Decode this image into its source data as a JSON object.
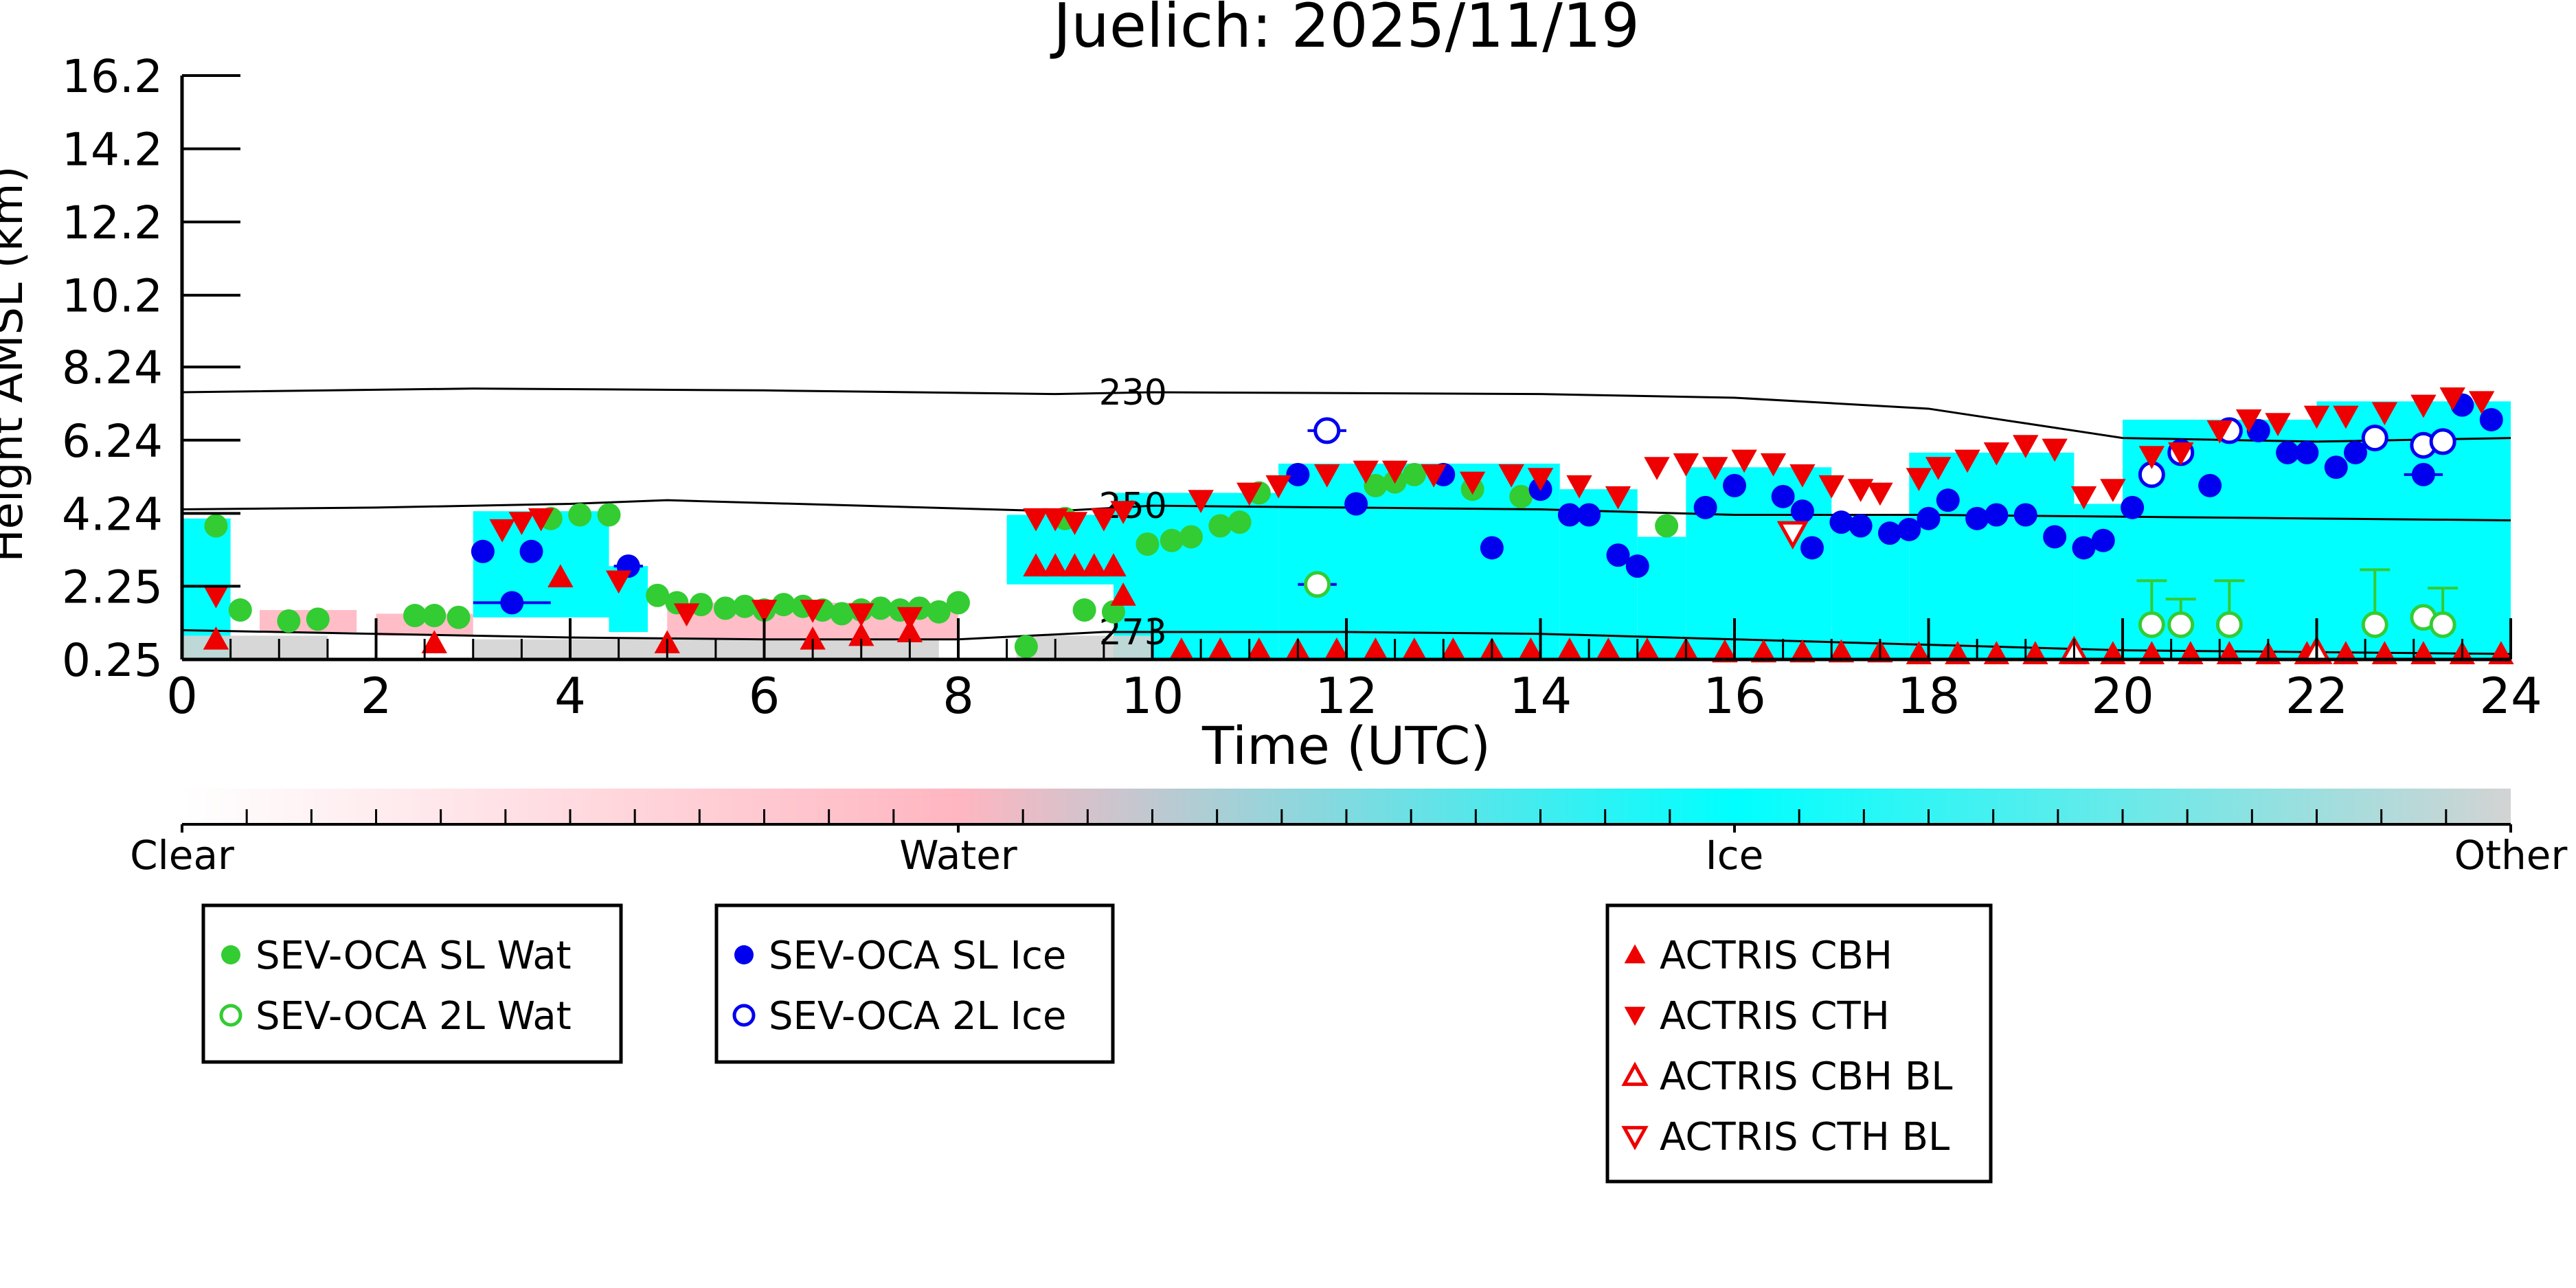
{
  "chart_data": {
    "type": "scatter",
    "title": "Juelich: 2025/11/19",
    "xlabel": "Time (UTC)",
    "ylabel": "Height AMSL (km)",
    "xlim": [
      0,
      24
    ],
    "ylim": [
      0.25,
      16.2
    ],
    "x_ticks": [
      0,
      2,
      4,
      6,
      8,
      10,
      12,
      14,
      16,
      18,
      20,
      22,
      24
    ],
    "y_ticks": [
      "0.25",
      "2.25",
      "4.24",
      "6.24",
      "8.24",
      "10.2",
      "12.2",
      "14.2",
      "16.2"
    ],
    "isotherms": [
      {
        "label": "230",
        "points": [
          [
            0,
            7.55
          ],
          [
            3,
            7.65
          ],
          [
            6,
            7.6
          ],
          [
            9,
            7.5
          ],
          [
            10,
            7.55
          ],
          [
            14,
            7.5
          ],
          [
            16,
            7.4
          ],
          [
            18,
            7.1
          ],
          [
            19,
            6.7
          ],
          [
            20,
            6.3
          ],
          [
            22,
            6.2
          ],
          [
            24,
            6.3
          ]
        ]
      },
      {
        "label": "250",
        "points": [
          [
            0,
            4.35
          ],
          [
            2,
            4.4
          ],
          [
            4,
            4.5
          ],
          [
            5,
            4.6
          ],
          [
            7,
            4.45
          ],
          [
            9,
            4.3
          ],
          [
            10,
            4.45
          ],
          [
            14,
            4.35
          ],
          [
            16,
            4.2
          ],
          [
            18,
            4.2
          ],
          [
            20,
            4.15
          ],
          [
            22,
            4.1
          ],
          [
            24,
            4.05
          ]
        ]
      },
      {
        "label": "273",
        "points": [
          [
            0,
            1.05
          ],
          [
            2,
            0.95
          ],
          [
            4,
            0.85
          ],
          [
            6,
            0.8
          ],
          [
            8,
            0.8
          ],
          [
            9.5,
            1.0
          ],
          [
            12,
            1.0
          ],
          [
            14,
            0.95
          ],
          [
            16,
            0.8
          ],
          [
            18,
            0.65
          ],
          [
            20,
            0.5
          ],
          [
            22,
            0.45
          ],
          [
            24,
            0.4
          ]
        ]
      }
    ],
    "phase_colorbar": {
      "labels": [
        "Clear",
        "Water",
        "Ice",
        "Other"
      ],
      "colors": [
        "#ffffff",
        "#ffb6c1",
        "#00ffff",
        "#d3d3d3"
      ]
    },
    "cloud_regions": [
      {
        "phase": "ice",
        "x0": 0,
        "x1": 0.5,
        "y0": 0.25,
        "y1": 4.1
      },
      {
        "phase": "ice",
        "x0": 3.0,
        "x1": 4.4,
        "y0": 1.4,
        "y1": 4.3
      },
      {
        "phase": "ice",
        "x0": 4.4,
        "x1": 4.8,
        "y0": 1.0,
        "y1": 2.8
      },
      {
        "phase": "ice",
        "x0": 8.5,
        "x1": 9.9,
        "y0": 2.3,
        "y1": 4.2
      },
      {
        "phase": "ice",
        "x0": 9.6,
        "x1": 11.3,
        "y0": 0.25,
        "y1": 4.8
      },
      {
        "phase": "ice",
        "x0": 11.3,
        "x1": 14.2,
        "y0": 0.25,
        "y1": 5.6
      },
      {
        "phase": "ice",
        "x0": 14.2,
        "x1": 15.0,
        "y0": 0.25,
        "y1": 4.9
      },
      {
        "phase": "ice",
        "x0": 15.0,
        "x1": 15.5,
        "y0": 0.25,
        "y1": 3.6
      },
      {
        "phase": "ice",
        "x0": 15.5,
        "x1": 17.0,
        "y0": 0.25,
        "y1": 5.5
      },
      {
        "phase": "ice",
        "x0": 17.0,
        "x1": 17.8,
        "y0": 0.25,
        "y1": 4.2
      },
      {
        "phase": "ice",
        "x0": 17.8,
        "x1": 19.5,
        "y0": 0.25,
        "y1": 5.9
      },
      {
        "phase": "ice",
        "x0": 19.5,
        "x1": 20.0,
        "y0": 0.25,
        "y1": 4.5
      },
      {
        "phase": "ice",
        "x0": 20.0,
        "x1": 22.0,
        "y0": 0.25,
        "y1": 6.8
      },
      {
        "phase": "ice",
        "x0": 22.0,
        "x1": 24.0,
        "y0": 0.25,
        "y1": 7.3
      },
      {
        "phase": "water",
        "x0": 0.8,
        "x1": 1.8,
        "y0": 1.0,
        "y1": 1.6
      },
      {
        "phase": "water",
        "x0": 2.0,
        "x1": 3.0,
        "y0": 0.9,
        "y1": 1.5
      },
      {
        "phase": "water",
        "x0": 5.0,
        "x1": 8.0,
        "y0": 0.8,
        "y1": 1.8
      },
      {
        "phase": "other",
        "x0": 0,
        "x1": 1.5,
        "y0": 0.25,
        "y1": 0.9
      },
      {
        "phase": "other",
        "x0": 3.0,
        "x1": 7.8,
        "y0": 0.25,
        "y1": 0.8
      },
      {
        "phase": "other",
        "x0": 8.6,
        "x1": 10.0,
        "y0": 0.25,
        "y1": 0.9
      }
    ],
    "series": [
      {
        "name": "SEV-OCA SL Wat",
        "marker": "circle",
        "filled": true,
        "color": "#33cc33",
        "points": [
          [
            0.35,
            3.9
          ],
          [
            0.6,
            1.6
          ],
          [
            1.1,
            1.3
          ],
          [
            1.4,
            1.35
          ],
          [
            2.4,
            1.45
          ],
          [
            2.6,
            1.45
          ],
          [
            2.85,
            1.4
          ],
          [
            3.8,
            4.1
          ],
          [
            4.1,
            4.2
          ],
          [
            4.4,
            4.2
          ],
          [
            4.9,
            2.0
          ],
          [
            5.1,
            1.8
          ],
          [
            5.35,
            1.75
          ],
          [
            5.6,
            1.65
          ],
          [
            5.8,
            1.7
          ],
          [
            6.0,
            1.6
          ],
          [
            6.2,
            1.75
          ],
          [
            6.4,
            1.7
          ],
          [
            6.6,
            1.6
          ],
          [
            6.8,
            1.5
          ],
          [
            7.0,
            1.6
          ],
          [
            7.2,
            1.65
          ],
          [
            7.4,
            1.6
          ],
          [
            7.6,
            1.65
          ],
          [
            7.8,
            1.55
          ],
          [
            8.0,
            1.8
          ],
          [
            8.7,
            0.6
          ],
          [
            9.1,
            4.1
          ],
          [
            9.3,
            1.6
          ],
          [
            9.6,
            1.55
          ],
          [
            9.95,
            3.4
          ],
          [
            10.2,
            3.5
          ],
          [
            10.4,
            3.6
          ],
          [
            10.7,
            3.9
          ],
          [
            10.9,
            4.0
          ],
          [
            11.1,
            4.8
          ],
          [
            12.3,
            5.0
          ],
          [
            12.5,
            5.1
          ],
          [
            12.7,
            5.3
          ],
          [
            13.3,
            4.9
          ],
          [
            13.8,
            4.7
          ],
          [
            15.3,
            3.9
          ]
        ]
      },
      {
        "name": "SEV-OCA 2L Wat",
        "marker": "circle",
        "filled": false,
        "color": "#33cc33",
        "points": [
          [
            11.7,
            2.3
          ],
          [
            20.3,
            1.2
          ],
          [
            20.6,
            1.2
          ],
          [
            21.1,
            1.2
          ],
          [
            22.6,
            1.2
          ],
          [
            23.1,
            1.4
          ],
          [
            23.3,
            1.2
          ]
        ]
      },
      {
        "name": "SEV-OCA SL Ice",
        "marker": "circle",
        "filled": true,
        "color": "#0000ee",
        "points": [
          [
            3.1,
            3.2
          ],
          [
            3.4,
            1.8
          ],
          [
            3.6,
            3.2
          ],
          [
            4.6,
            2.8
          ],
          [
            11.5,
            5.3
          ],
          [
            12.1,
            4.5
          ],
          [
            13.0,
            5.3
          ],
          [
            13.5,
            3.3
          ],
          [
            14.0,
            4.9
          ],
          [
            14.3,
            4.2
          ],
          [
            14.5,
            4.2
          ],
          [
            14.8,
            3.1
          ],
          [
            15.0,
            2.8
          ],
          [
            15.7,
            4.4
          ],
          [
            16.0,
            5.0
          ],
          [
            16.5,
            4.7
          ],
          [
            16.7,
            4.3
          ],
          [
            16.8,
            3.3
          ],
          [
            17.1,
            4.0
          ],
          [
            17.3,
            3.9
          ],
          [
            17.6,
            3.7
          ],
          [
            17.8,
            3.8
          ],
          [
            18.0,
            4.1
          ],
          [
            18.2,
            4.6
          ],
          [
            18.5,
            4.1
          ],
          [
            18.7,
            4.2
          ],
          [
            19.0,
            4.2
          ],
          [
            19.3,
            3.6
          ],
          [
            19.6,
            3.3
          ],
          [
            19.8,
            3.5
          ],
          [
            20.1,
            4.4
          ],
          [
            20.9,
            5.0
          ],
          [
            21.4,
            6.5
          ],
          [
            21.7,
            5.9
          ],
          [
            21.9,
            5.9
          ],
          [
            22.2,
            5.5
          ],
          [
            22.4,
            5.9
          ],
          [
            23.1,
            5.3
          ],
          [
            23.5,
            7.2
          ],
          [
            23.8,
            6.8
          ]
        ]
      },
      {
        "name": "SEV-OCA 2L Ice",
        "marker": "circle",
        "filled": false,
        "color": "#0000ee",
        "points": [
          [
            11.8,
            6.5
          ],
          [
            20.3,
            5.3
          ],
          [
            20.6,
            5.9
          ],
          [
            21.1,
            6.5
          ],
          [
            22.6,
            6.3
          ],
          [
            23.1,
            6.1
          ],
          [
            23.3,
            6.2
          ]
        ]
      },
      {
        "name": "ACTRIS CBH",
        "marker": "triangle-up",
        "filled": true,
        "color": "#ee0000",
        "points": [
          [
            0.35,
            0.8
          ],
          [
            2.6,
            0.7
          ],
          [
            3.9,
            2.5
          ],
          [
            5.0,
            0.7
          ],
          [
            6.5,
            0.8
          ],
          [
            7.0,
            0.9
          ],
          [
            7.5,
            1.0
          ],
          [
            8.8,
            2.8
          ],
          [
            9.0,
            2.8
          ],
          [
            9.2,
            2.8
          ],
          [
            9.4,
            2.8
          ],
          [
            9.6,
            2.8
          ],
          [
            9.7,
            2.0
          ],
          [
            10.3,
            0.5
          ],
          [
            10.7,
            0.5
          ],
          [
            11.1,
            0.5
          ],
          [
            11.5,
            0.5
          ],
          [
            11.9,
            0.5
          ],
          [
            12.3,
            0.5
          ],
          [
            12.7,
            0.5
          ],
          [
            13.1,
            0.5
          ],
          [
            13.5,
            0.5
          ],
          [
            13.9,
            0.5
          ],
          [
            14.3,
            0.5
          ],
          [
            14.7,
            0.5
          ],
          [
            15.1,
            0.5
          ],
          [
            15.5,
            0.5
          ],
          [
            15.9,
            0.45
          ],
          [
            16.3,
            0.45
          ],
          [
            16.7,
            0.45
          ],
          [
            17.1,
            0.45
          ],
          [
            17.5,
            0.45
          ],
          [
            17.9,
            0.4
          ],
          [
            18.3,
            0.4
          ],
          [
            18.7,
            0.4
          ],
          [
            19.1,
            0.4
          ],
          [
            19.5,
            0.4
          ],
          [
            19.9,
            0.4
          ],
          [
            20.3,
            0.4
          ],
          [
            20.7,
            0.4
          ],
          [
            21.1,
            0.4
          ],
          [
            21.5,
            0.4
          ],
          [
            21.9,
            0.4
          ],
          [
            22.3,
            0.4
          ],
          [
            22.7,
            0.4
          ],
          [
            23.1,
            0.4
          ],
          [
            23.5,
            0.4
          ],
          [
            23.9,
            0.4
          ]
        ]
      },
      {
        "name": "ACTRIS CTH",
        "marker": "triangle-down",
        "filled": true,
        "color": "#ee0000",
        "points": [
          [
            0.35,
            2.0
          ],
          [
            3.3,
            3.8
          ],
          [
            3.5,
            4.0
          ],
          [
            3.7,
            4.1
          ],
          [
            4.5,
            2.4
          ],
          [
            5.2,
            1.5
          ],
          [
            6.0,
            1.6
          ],
          [
            6.5,
            1.6
          ],
          [
            7.0,
            1.5
          ],
          [
            7.5,
            1.4
          ],
          [
            8.8,
            4.1
          ],
          [
            9.0,
            4.1
          ],
          [
            9.2,
            4.0
          ],
          [
            9.5,
            4.1
          ],
          [
            9.7,
            4.3
          ],
          [
            10.5,
            4.6
          ],
          [
            11.0,
            4.8
          ],
          [
            11.3,
            5.0
          ],
          [
            11.8,
            5.3
          ],
          [
            12.2,
            5.4
          ],
          [
            12.5,
            5.4
          ],
          [
            12.9,
            5.3
          ],
          [
            13.3,
            5.1
          ],
          [
            13.7,
            5.3
          ],
          [
            14.0,
            5.2
          ],
          [
            14.4,
            5.0
          ],
          [
            14.8,
            4.7
          ],
          [
            15.2,
            5.5
          ],
          [
            15.5,
            5.6
          ],
          [
            15.8,
            5.5
          ],
          [
            16.1,
            5.7
          ],
          [
            16.4,
            5.6
          ],
          [
            16.7,
            5.3
          ],
          [
            17.0,
            5.0
          ],
          [
            17.3,
            4.9
          ],
          [
            17.5,
            4.8
          ],
          [
            17.9,
            5.2
          ],
          [
            18.1,
            5.5
          ],
          [
            18.4,
            5.7
          ],
          [
            18.7,
            5.9
          ],
          [
            19.0,
            6.1
          ],
          [
            19.3,
            6.0
          ],
          [
            19.6,
            4.7
          ],
          [
            19.9,
            4.9
          ],
          [
            20.3,
            5.8
          ],
          [
            20.6,
            5.9
          ],
          [
            21.0,
            6.5
          ],
          [
            21.3,
            6.8
          ],
          [
            21.6,
            6.7
          ],
          [
            22.0,
            6.9
          ],
          [
            22.3,
            6.9
          ],
          [
            22.7,
            7.0
          ],
          [
            23.1,
            7.2
          ],
          [
            23.4,
            7.4
          ],
          [
            23.7,
            7.3
          ]
        ]
      },
      {
        "name": "ACTRIS CBH BL",
        "marker": "triangle-up",
        "filled": false,
        "color": "#ee0000",
        "points": [
          [
            19.5,
            0.45
          ],
          [
            22.0,
            0.45
          ]
        ]
      },
      {
        "name": "ACTRIS CTH BL",
        "marker": "triangle-down",
        "filled": false,
        "color": "#ee0000",
        "points": [
          [
            16.6,
            3.7
          ]
        ]
      }
    ],
    "error_bars": {
      "x": [
        [
          3.4,
          1.8,
          0.4
        ],
        [
          4.6,
          2.8,
          0.15
        ],
        [
          11.8,
          6.5,
          0.2
        ],
        [
          11.7,
          2.3,
          0.2
        ],
        [
          23.1,
          5.3,
          0.2
        ]
      ],
      "y": [
        [
          20.3,
          1.2,
          1.2
        ],
        [
          20.6,
          1.2,
          0.7
        ],
        [
          21.1,
          1.2,
          1.2
        ],
        [
          22.6,
          1.2,
          1.5
        ],
        [
          23.3,
          1.2,
          1.0
        ]
      ]
    },
    "legends": [
      {
        "entries": [
          0,
          1
        ]
      },
      {
        "entries": [
          2,
          3
        ]
      },
      {
        "entries": [
          4,
          5,
          6,
          7
        ]
      }
    ]
  }
}
